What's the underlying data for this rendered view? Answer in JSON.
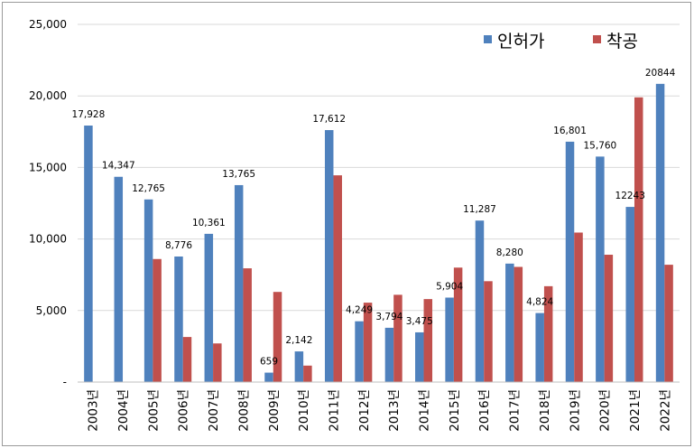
{
  "chart_data": {
    "type": "bar",
    "title": "",
    "xlabel": "",
    "ylabel": "",
    "ylim": [
      0,
      25000
    ],
    "yticks": [
      0,
      5000,
      10000,
      15000,
      20000,
      25000
    ],
    "ytick_labels": [
      "-",
      "5,000",
      "10,000",
      "15,000",
      "20,000",
      "25,000"
    ],
    "grid": true,
    "legend_position": "top-right",
    "categories": [
      "2003년",
      "2004년",
      "2005년",
      "2006년",
      "2007년",
      "2008년",
      "2009년",
      "2010년",
      "2011년",
      "2012년",
      "2013년",
      "2014년",
      "2015년",
      "2016년",
      "2017년",
      "2018년",
      "2019년",
      "2020년",
      "2021년",
      "2022년"
    ],
    "series": [
      {
        "name": "인허가",
        "color": "#4f81bd",
        "values": [
          17928,
          14347,
          12765,
          8776,
          10361,
          13765,
          659,
          2142,
          17612,
          4249,
          3794,
          3475,
          5904,
          11287,
          8280,
          4824,
          16801,
          15760,
          12243,
          20844
        ],
        "labels": [
          "17,928",
          "14,347",
          "12,765",
          "8,776",
          "10,361",
          "13,765",
          "659",
          "2,142",
          "17,612",
          "4,249",
          "3,794",
          "3,475",
          "5,904",
          "11,287",
          "8,280",
          "4,824",
          "16,801",
          "15,760",
          "12243",
          "20844"
        ]
      },
      {
        "name": "착공",
        "color": "#c0504d",
        "values": [
          0,
          0,
          8600,
          3150,
          2700,
          7950,
          6300,
          1150,
          14450,
          5550,
          6100,
          5800,
          8000,
          7050,
          8050,
          6700,
          10450,
          8900,
          19900,
          8200
        ]
      }
    ]
  }
}
